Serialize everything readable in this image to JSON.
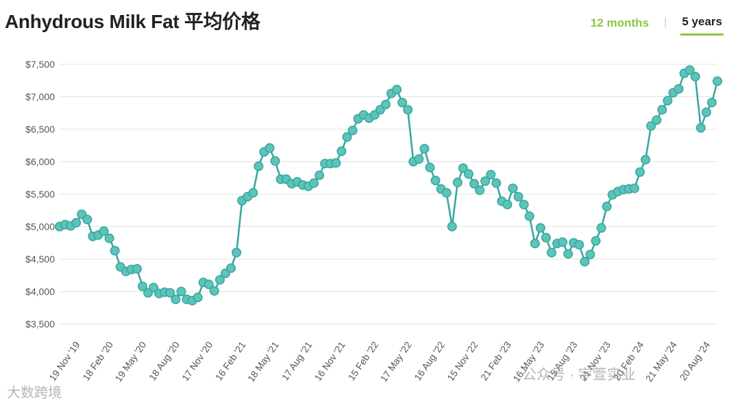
{
  "header": {
    "title": "Anhydrous Milk Fat 平均价格",
    "tabs": [
      {
        "label": "12 months",
        "active": false
      },
      {
        "label": "5 years",
        "active": true
      }
    ]
  },
  "watermarks": {
    "left": "大数跨境",
    "right": "公众号 · 宇萱实业"
  },
  "colors": {
    "series": "#3aa6a0",
    "marker_fill": "#5cc4b8",
    "accent": "#8cc63f",
    "grid": "#e3e3e3"
  },
  "chart_data": {
    "type": "line",
    "ylim": [
      3500,
      7500
    ],
    "yticks": [
      3500,
      4000,
      4500,
      5000,
      5500,
      6000,
      6500,
      7000,
      7500
    ],
    "ytick_labels": [
      "$3,500",
      "$4,000",
      "$4,500",
      "$5,000",
      "$5,500",
      "$6,000",
      "$6,500",
      "$7,000",
      "$7,500"
    ],
    "xtick_labels": [
      {
        "label": "19 Nov '19",
        "index": 3
      },
      {
        "label": "18 Feb '20",
        "index": 9
      },
      {
        "label": "19 May '20",
        "index": 15
      },
      {
        "label": "18 Aug '20",
        "index": 21
      },
      {
        "label": "17 Nov '20",
        "index": 27
      },
      {
        "label": "16 Feb '21",
        "index": 33
      },
      {
        "label": "18 May '21",
        "index": 39
      },
      {
        "label": "17 Aug '21",
        "index": 45
      },
      {
        "label": "16 Nov '21",
        "index": 51
      },
      {
        "label": "15 Feb '22",
        "index": 57
      },
      {
        "label": "17 May '22",
        "index": 63
      },
      {
        "label": "16 Aug '22",
        "index": 69
      },
      {
        "label": "15 Nov '22",
        "index": 75
      },
      {
        "label": "21 Feb '23",
        "index": 81
      },
      {
        "label": "16 May '23",
        "index": 87
      },
      {
        "label": "15 Aug '23",
        "index": 93
      },
      {
        "label": "21 Nov '23",
        "index": 99
      },
      {
        "label": "20 Feb '24",
        "index": 105
      },
      {
        "label": "21 May '24",
        "index": 111
      },
      {
        "label": "20 Aug '24",
        "index": 117
      }
    ],
    "values": [
      5000,
      5030,
      5010,
      5060,
      5190,
      5110,
      4850,
      4870,
      4930,
      4820,
      4630,
      4380,
      4310,
      4340,
      4350,
      4080,
      3980,
      4060,
      3970,
      3990,
      3980,
      3880,
      4000,
      3880,
      3860,
      3910,
      4140,
      4110,
      4010,
      4180,
      4280,
      4360,
      4600,
      5400,
      5460,
      5520,
      5930,
      6150,
      6210,
      6010,
      5730,
      5730,
      5660,
      5690,
      5640,
      5620,
      5670,
      5790,
      5970,
      5970,
      5980,
      6160,
      6380,
      6480,
      6660,
      6720,
      6670,
      6720,
      6800,
      6880,
      7050,
      7110,
      6910,
      6800,
      6000,
      6040,
      6200,
      5910,
      5710,
      5580,
      5520,
      5000,
      5680,
      5900,
      5810,
      5660,
      5560,
      5700,
      5800,
      5670,
      5390,
      5340,
      5590,
      5460,
      5340,
      5160,
      4740,
      4980,
      4830,
      4600,
      4740,
      4760,
      4580,
      4750,
      4720,
      4460,
      4570,
      4780,
      4980,
      5310,
      5490,
      5540,
      5570,
      5580,
      5590,
      5840,
      6030,
      6550,
      6640,
      6800,
      6940,
      7060,
      7120,
      7360,
      7410,
      7310,
      6520,
      6760,
      6910,
      7240
    ]
  }
}
